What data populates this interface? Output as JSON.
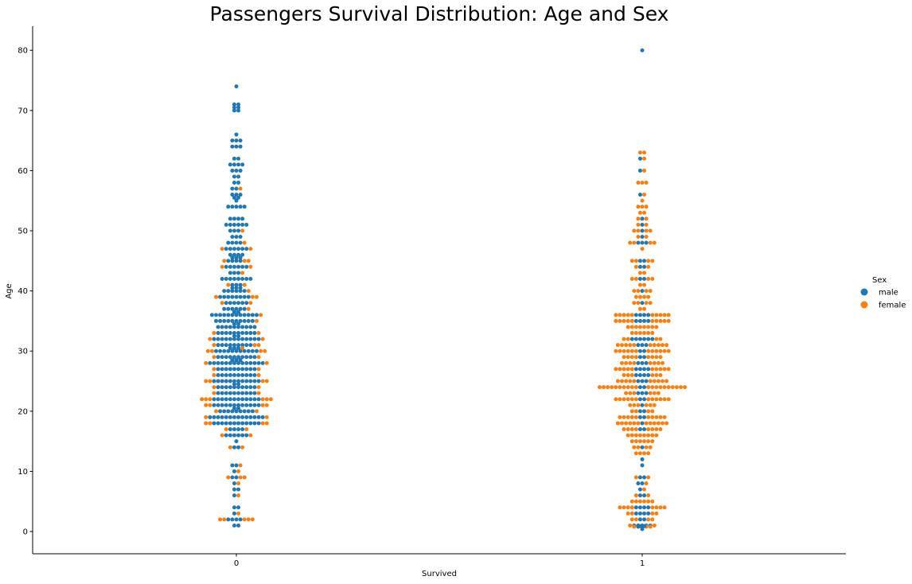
{
  "chart_data": {
    "type": "scatter",
    "subtype": "swarm",
    "title": "Passengers Survival Distribution: Age and Sex",
    "xlabel": "Survived",
    "ylabel": "Age",
    "categories": [
      "0",
      "1"
    ],
    "ylim": [
      -3.7,
      84
    ],
    "yticks": [
      0,
      10,
      20,
      30,
      40,
      50,
      60,
      70,
      80
    ],
    "grid": false,
    "legend": {
      "title": "Sex",
      "placement": "center-right",
      "entries": [
        {
          "name": "male",
          "color": "#1f77b4"
        },
        {
          "name": "female",
          "color": "#ff7f0e"
        }
      ]
    },
    "series": [
      {
        "name": "male",
        "color": "#1f77b4",
        "groups": [
          {
            "category": "0",
            "points": [
              [
                1,
                2
              ],
              [
                2,
                4
              ],
              [
                3,
                1
              ],
              [
                4,
                2
              ],
              [
                6,
                1
              ],
              [
                7,
                2
              ],
              [
                8,
                1
              ],
              [
                9,
                2
              ],
              [
                10,
                1
              ],
              [
                11,
                2
              ],
              [
                14,
                2
              ],
              [
                15,
                1
              ],
              [
                16,
                6
              ],
              [
                17,
                4
              ],
              [
                18,
                12
              ],
              [
                19,
                14
              ],
              [
                20,
                9
              ],
              [
                20.5,
                2
              ],
              [
                21,
                12
              ],
              [
                22,
                12
              ],
              [
                23,
                10
              ],
              [
                24,
                10
              ],
              [
                24.5,
                2
              ],
              [
                25,
                12
              ],
              [
                26,
                10
              ],
              [
                27,
                10
              ],
              [
                28,
                14
              ],
              [
                28.5,
                3
              ],
              [
                29,
                10
              ],
              [
                30,
                11
              ],
              [
                30.5,
                3
              ],
              [
                31,
                9
              ],
              [
                32,
                12
              ],
              [
                32.5,
                2
              ],
              [
                33,
                10
              ],
              [
                34,
                10
              ],
              [
                34.5,
                2
              ],
              [
                35,
                10
              ],
              [
                36,
                12
              ],
              [
                36.5,
                2
              ],
              [
                37,
                6
              ],
              [
                38,
                6
              ],
              [
                39,
                8
              ],
              [
                40,
                6
              ],
              [
                40.5,
                3
              ],
              [
                41,
                3
              ],
              [
                42,
                8
              ],
              [
                43,
                3
              ],
              [
                44,
                6
              ],
              [
                45,
                4
              ],
              [
                45.5,
                3
              ],
              [
                46,
                4
              ],
              [
                47,
                6
              ],
              [
                48,
                4
              ],
              [
                49,
                3
              ],
              [
                50,
                3
              ],
              [
                51,
                6
              ],
              [
                52,
                4
              ],
              [
                54,
                5
              ],
              [
                55,
                1
              ],
              [
                55.5,
                2
              ],
              [
                56,
                3
              ],
              [
                57,
                2
              ],
              [
                58,
                2
              ],
              [
                59,
                2
              ],
              [
                60,
                3
              ],
              [
                61,
                4
              ],
              [
                62,
                2
              ],
              [
                64,
                3
              ],
              [
                65,
                3
              ],
              [
                66,
                1
              ],
              [
                70,
                2
              ],
              [
                70.5,
                2
              ],
              [
                71,
                2
              ],
              [
                74,
                1
              ]
            ]
          },
          {
            "category": "1",
            "points": [
              [
                0.4,
                1
              ],
              [
                0.8,
                2
              ],
              [
                0.9,
                2
              ],
              [
                1,
                5
              ],
              [
                2,
                2
              ],
              [
                3,
                4
              ],
              [
                4,
                4
              ],
              [
                6,
                2
              ],
              [
                7,
                1
              ],
              [
                8,
                2
              ],
              [
                9,
                2
              ],
              [
                11,
                1
              ],
              [
                12,
                1
              ],
              [
                14,
                1
              ],
              [
                17,
                2
              ],
              [
                18,
                1
              ],
              [
                19,
                2
              ],
              [
                20,
                2
              ],
              [
                21,
                1
              ],
              [
                22,
                2
              ],
              [
                23,
                3
              ],
              [
                24,
                2
              ],
              [
                25,
                3
              ],
              [
                26,
                4
              ],
              [
                27,
                4
              ],
              [
                28,
                3
              ],
              [
                29,
                2
              ],
              [
                30,
                2
              ],
              [
                31,
                3
              ],
              [
                32,
                6
              ],
              [
                35,
                4
              ],
              [
                36,
                4
              ],
              [
                38,
                1
              ],
              [
                40,
                1
              ],
              [
                42,
                2
              ],
              [
                44,
                2
              ],
              [
                45,
                2
              ],
              [
                48,
                3
              ],
              [
                49,
                1
              ],
              [
                50,
                1
              ],
              [
                51,
                1
              ],
              [
                52,
                1
              ],
              [
                56,
                1
              ],
              [
                60,
                1
              ],
              [
                62,
                1
              ],
              [
                80,
                1
              ]
            ]
          }
        ]
      },
      {
        "name": "female",
        "color": "#ff7f0e",
        "groups": [
          {
            "category": "0",
            "points": [
              [
                2,
                5
              ],
              [
                3,
                1
              ],
              [
                6,
                1
              ],
              [
                8,
                1
              ],
              [
                9,
                3
              ],
              [
                10,
                1
              ],
              [
                11,
                1
              ],
              [
                14,
                2
              ],
              [
                16,
                2
              ],
              [
                17,
                2
              ],
              [
                18,
                4
              ],
              [
                19,
                2
              ],
              [
                20,
                2
              ],
              [
                21,
                4
              ],
              [
                22,
                6
              ],
              [
                23,
                2
              ],
              [
                24,
                2
              ],
              [
                25,
                4
              ],
              [
                26,
                2
              ],
              [
                27,
                2
              ],
              [
                28,
                2
              ],
              [
                29,
                2
              ],
              [
                30,
                4
              ],
              [
                30.5,
                1
              ],
              [
                31,
                3
              ],
              [
                32,
                2
              ],
              [
                33,
                2
              ],
              [
                35,
                1
              ],
              [
                36,
                1
              ],
              [
                37,
                1
              ],
              [
                38,
                2
              ],
              [
                39,
                3
              ],
              [
                40,
                1
              ],
              [
                41,
                2
              ],
              [
                43,
                1
              ],
              [
                44,
                2
              ],
              [
                45,
                3
              ],
              [
                47,
                2
              ],
              [
                48,
                1
              ],
              [
                50,
                1
              ],
              [
                57,
                1
              ]
            ]
          },
          {
            "category": "1",
            "points": [
              [
                0.8,
                3
              ],
              [
                1,
                2
              ],
              [
                2,
                4
              ],
              [
                3,
                4
              ],
              [
                4,
                8
              ],
              [
                5,
                6
              ],
              [
                6,
                2
              ],
              [
                7,
                1
              ],
              [
                8,
                1
              ],
              [
                9,
                2
              ],
              [
                13,
                4
              ],
              [
                14,
                4
              ],
              [
                15,
                6
              ],
              [
                16,
                8
              ],
              [
                17,
                8
              ],
              [
                18,
                12
              ],
              [
                19,
                10
              ],
              [
                20,
                4
              ],
              [
                21,
                6
              ],
              [
                22,
                12
              ],
              [
                23,
                6
              ],
              [
                24,
                20
              ],
              [
                25,
                10
              ],
              [
                26,
                6
              ],
              [
                27,
                10
              ],
              [
                28,
                8
              ],
              [
                29,
                8
              ],
              [
                30,
                12
              ],
              [
                31,
                10
              ],
              [
                32,
                4
              ],
              [
                33,
                6
              ],
              [
                34,
                8
              ],
              [
                35,
                10
              ],
              [
                36,
                10
              ],
              [
                37,
                2
              ],
              [
                38,
                4
              ],
              [
                39,
                4
              ],
              [
                40,
                4
              ],
              [
                41,
                2
              ],
              [
                42,
                4
              ],
              [
                43,
                2
              ],
              [
                44,
                2
              ],
              [
                45,
                4
              ],
              [
                47,
                1
              ],
              [
                48,
                4
              ],
              [
                49,
                2
              ],
              [
                50,
                4
              ],
              [
                51,
                2
              ],
              [
                52,
                2
              ],
              [
                53,
                2
              ],
              [
                54,
                3
              ],
              [
                55,
                1
              ],
              [
                56,
                1
              ],
              [
                58,
                3
              ],
              [
                60,
                1
              ],
              [
                62,
                1
              ],
              [
                63,
                2
              ]
            ]
          }
        ]
      }
    ]
  }
}
